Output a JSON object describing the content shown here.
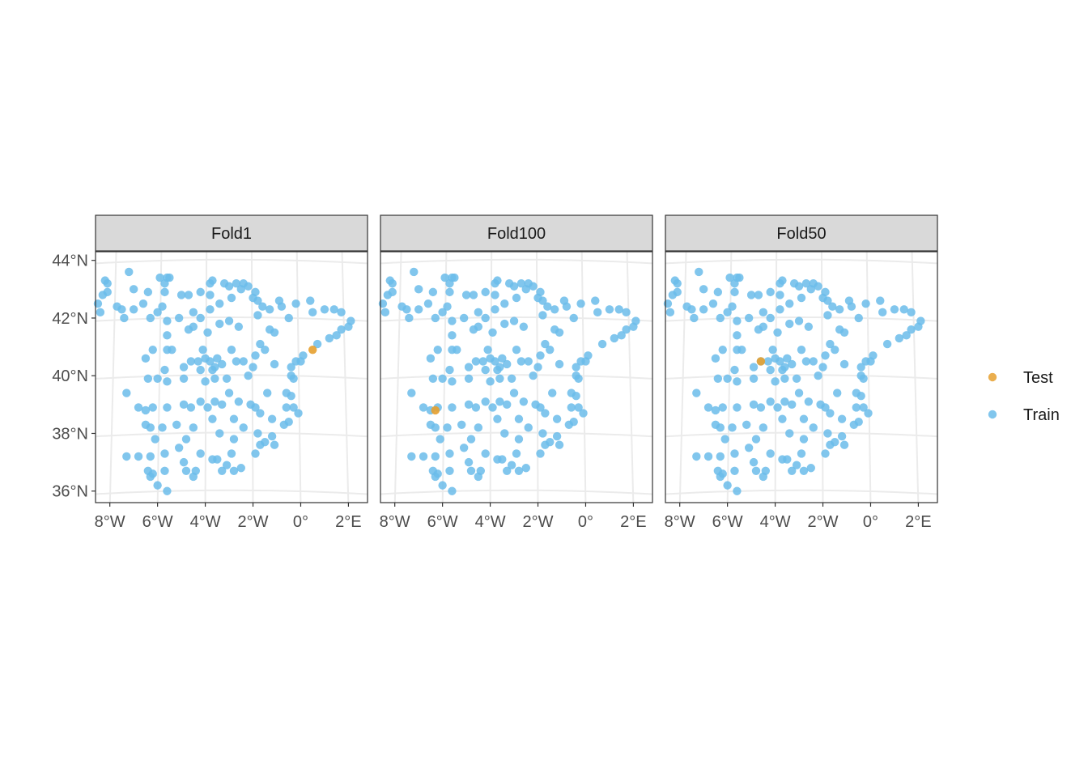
{
  "chart_data": {
    "type": "scatter",
    "facet_labels": [
      "Fold1",
      "Fold100",
      "Fold50"
    ],
    "x_ticks": [
      -8,
      -6,
      -4,
      -2,
      0,
      2
    ],
    "x_tick_labels": [
      "8°W",
      "6°W",
      "4°W",
      "2°W",
      "0°",
      "2°E"
    ],
    "y_ticks": [
      36,
      38,
      40,
      42,
      44
    ],
    "y_tick_labels": [
      "36°N",
      "38°N",
      "40°N",
      "42°N",
      "44°N"
    ],
    "xlim": [
      -8.6,
      2.8
    ],
    "ylim": [
      35.6,
      44.3
    ],
    "grid": true,
    "legend_position": "right",
    "legend": [
      {
        "key": "test",
        "label": "Test",
        "color": "#E6A02F"
      },
      {
        "key": "train",
        "label": "Train",
        "color": "#6BBCEA"
      }
    ],
    "test_points": {
      "Fold1": [
        0.5,
        40.9
      ],
      "Fold100": [
        -6.3,
        38.8
      ],
      "Fold50": [
        -4.6,
        40.5
      ]
    },
    "train_points": [
      [
        -8.5,
        42.5
      ],
      [
        -8.4,
        42.2
      ],
      [
        -8.3,
        42.8
      ],
      [
        -8.1,
        42.9
      ],
      [
        -8.2,
        43.3
      ],
      [
        -8.1,
        43.2
      ],
      [
        -7.2,
        43.6
      ],
      [
        -7.7,
        42.4
      ],
      [
        -7.5,
        42.3
      ],
      [
        -7.4,
        42.0
      ],
      [
        -7.0,
        43.0
      ],
      [
        -7.0,
        42.3
      ],
      [
        -6.6,
        42.5
      ],
      [
        -6.4,
        42.9
      ],
      [
        -6.3,
        42.0
      ],
      [
        -5.9,
        43.4
      ],
      [
        -5.6,
        43.4
      ],
      [
        -5.5,
        43.4
      ],
      [
        -5.7,
        43.2
      ],
      [
        -5.7,
        42.9
      ],
      [
        -5.8,
        42.4
      ],
      [
        -5.6,
        41.9
      ],
      [
        -5.6,
        41.4
      ],
      [
        -5.0,
        42.8
      ],
      [
        -4.7,
        42.8
      ],
      [
        -4.5,
        42.2
      ],
      [
        -4.2,
        42.9
      ],
      [
        -3.8,
        42.8
      ],
      [
        -3.7,
        43.3
      ],
      [
        -3.8,
        43.2
      ],
      [
        -3.2,
        43.2
      ],
      [
        -3.0,
        43.1
      ],
      [
        -2.7,
        43.2
      ],
      [
        -2.5,
        43.0
      ],
      [
        -2.4,
        43.2
      ],
      [
        -2.2,
        43.1
      ],
      [
        -2.9,
        42.7
      ],
      [
        -3.4,
        42.5
      ],
      [
        -3.8,
        42.3
      ],
      [
        -4.2,
        42.0
      ],
      [
        -4.5,
        41.7
      ],
      [
        -4.7,
        41.6
      ],
      [
        -3.9,
        41.5
      ],
      [
        -3.4,
        41.8
      ],
      [
        -2.6,
        41.7
      ],
      [
        -1.8,
        42.6
      ],
      [
        -1.9,
        42.9
      ],
      [
        -1.6,
        42.4
      ],
      [
        -1.8,
        42.1
      ],
      [
        -1.3,
        42.3
      ],
      [
        -0.9,
        42.6
      ],
      [
        -0.8,
        42.4
      ],
      [
        -0.2,
        42.5
      ],
      [
        0.4,
        42.6
      ],
      [
        0.5,
        42.2
      ],
      [
        -0.5,
        42.0
      ],
      [
        1.0,
        42.3
      ],
      [
        1.4,
        42.3
      ],
      [
        1.7,
        42.2
      ],
      [
        2.1,
        41.9
      ],
      [
        2.0,
        41.7
      ],
      [
        1.7,
        41.6
      ],
      [
        1.5,
        41.4
      ],
      [
        1.2,
        41.3
      ],
      [
        0.7,
        41.1
      ],
      [
        0.1,
        40.7
      ],
      [
        0.0,
        40.5
      ],
      [
        -0.2,
        40.5
      ],
      [
        -0.4,
        40.3
      ],
      [
        -0.4,
        40.0
      ],
      [
        -0.3,
        39.9
      ],
      [
        -1.3,
        41.6
      ],
      [
        -1.1,
        41.5
      ],
      [
        -1.7,
        41.1
      ],
      [
        -1.5,
        40.9
      ],
      [
        -1.9,
        40.7
      ],
      [
        -2.4,
        40.5
      ],
      [
        -2.2,
        40.0
      ],
      [
        -2.7,
        40.5
      ],
      [
        -2.9,
        40.9
      ],
      [
        -3.3,
        40.4
      ],
      [
        -3.6,
        40.3
      ],
      [
        -3.7,
        40.2
      ],
      [
        -3.8,
        40.5
      ],
      [
        -4.0,
        40.6
      ],
      [
        -4.1,
        40.9
      ],
      [
        -4.3,
        40.5
      ],
      [
        -4.6,
        40.5
      ],
      [
        -4.9,
        40.3
      ],
      [
        -5.4,
        40.9
      ],
      [
        -5.6,
        40.9
      ],
      [
        -6.2,
        40.9
      ],
      [
        -6.5,
        40.6
      ],
      [
        -5.7,
        40.2
      ],
      [
        -6.0,
        39.9
      ],
      [
        -6.4,
        39.9
      ],
      [
        -5.6,
        39.8
      ],
      [
        -4.9,
        39.9
      ],
      [
        -4.0,
        39.8
      ],
      [
        -3.6,
        39.9
      ],
      [
        -3.1,
        39.9
      ],
      [
        -3.0,
        39.4
      ],
      [
        -3.3,
        39.0
      ],
      [
        -3.6,
        39.1
      ],
      [
        -3.9,
        38.9
      ],
      [
        -4.6,
        38.9
      ],
      [
        -4.9,
        39.0
      ],
      [
        -5.6,
        38.9
      ],
      [
        -6.2,
        38.9
      ],
      [
        -6.5,
        38.8
      ],
      [
        -6.3,
        38.2
      ],
      [
        -6.1,
        37.8
      ],
      [
        -5.8,
        38.2
      ],
      [
        -5.2,
        38.3
      ],
      [
        -4.5,
        38.2
      ],
      [
        -4.8,
        37.8
      ],
      [
        -5.1,
        37.5
      ],
      [
        -5.7,
        37.3
      ],
      [
        -6.3,
        37.2
      ],
      [
        -6.8,
        37.2
      ],
      [
        -7.3,
        37.2
      ],
      [
        -6.4,
        36.7
      ],
      [
        -6.3,
        36.5
      ],
      [
        -6.2,
        36.6
      ],
      [
        -5.7,
        36.7
      ],
      [
        -6.0,
        36.2
      ],
      [
        -5.6,
        36.0
      ],
      [
        -4.8,
        36.7
      ],
      [
        -4.5,
        36.5
      ],
      [
        -4.4,
        36.7
      ],
      [
        -4.9,
        37.0
      ],
      [
        -4.2,
        37.3
      ],
      [
        -3.7,
        37.1
      ],
      [
        -3.5,
        37.1
      ],
      [
        -3.1,
        36.9
      ],
      [
        -2.9,
        37.3
      ],
      [
        -2.5,
        36.8
      ],
      [
        -2.8,
        36.7
      ],
      [
        -3.3,
        36.7
      ],
      [
        -1.9,
        37.3
      ],
      [
        -1.7,
        37.6
      ],
      [
        -1.5,
        37.7
      ],
      [
        -1.1,
        37.6
      ],
      [
        -1.2,
        37.9
      ],
      [
        -1.8,
        38.0
      ],
      [
        -2.4,
        38.2
      ],
      [
        -2.8,
        38.5
      ],
      [
        -3.7,
        38.5
      ],
      [
        -3.4,
        38.0
      ],
      [
        -2.8,
        37.8
      ],
      [
        -0.7,
        38.3
      ],
      [
        -0.5,
        38.4
      ],
      [
        -1.2,
        38.5
      ],
      [
        -1.7,
        38.7
      ],
      [
        -1.9,
        38.9
      ],
      [
        -0.6,
        39.4
      ],
      [
        -0.4,
        39.3
      ],
      [
        -0.3,
        38.9
      ],
      [
        -0.1,
        38.7
      ],
      [
        -0.6,
        38.9
      ],
      [
        -1.4,
        39.4
      ],
      [
        -2.1,
        39.0
      ],
      [
        -2.6,
        39.1
      ],
      [
        -7.3,
        39.4
      ],
      [
        -6.8,
        38.9
      ],
      [
        -6.5,
        38.3
      ],
      [
        -4.2,
        39.1
      ],
      [
        -3.5,
        40.6
      ],
      [
        -2.0,
        40.3
      ],
      [
        -1.1,
        40.4
      ],
      [
        -2.0,
        42.7
      ],
      [
        -3.0,
        41.9
      ],
      [
        -5.1,
        42.0
      ],
      [
        -6.0,
        42.2
      ],
      [
        -4.2,
        40.2
      ]
    ]
  }
}
